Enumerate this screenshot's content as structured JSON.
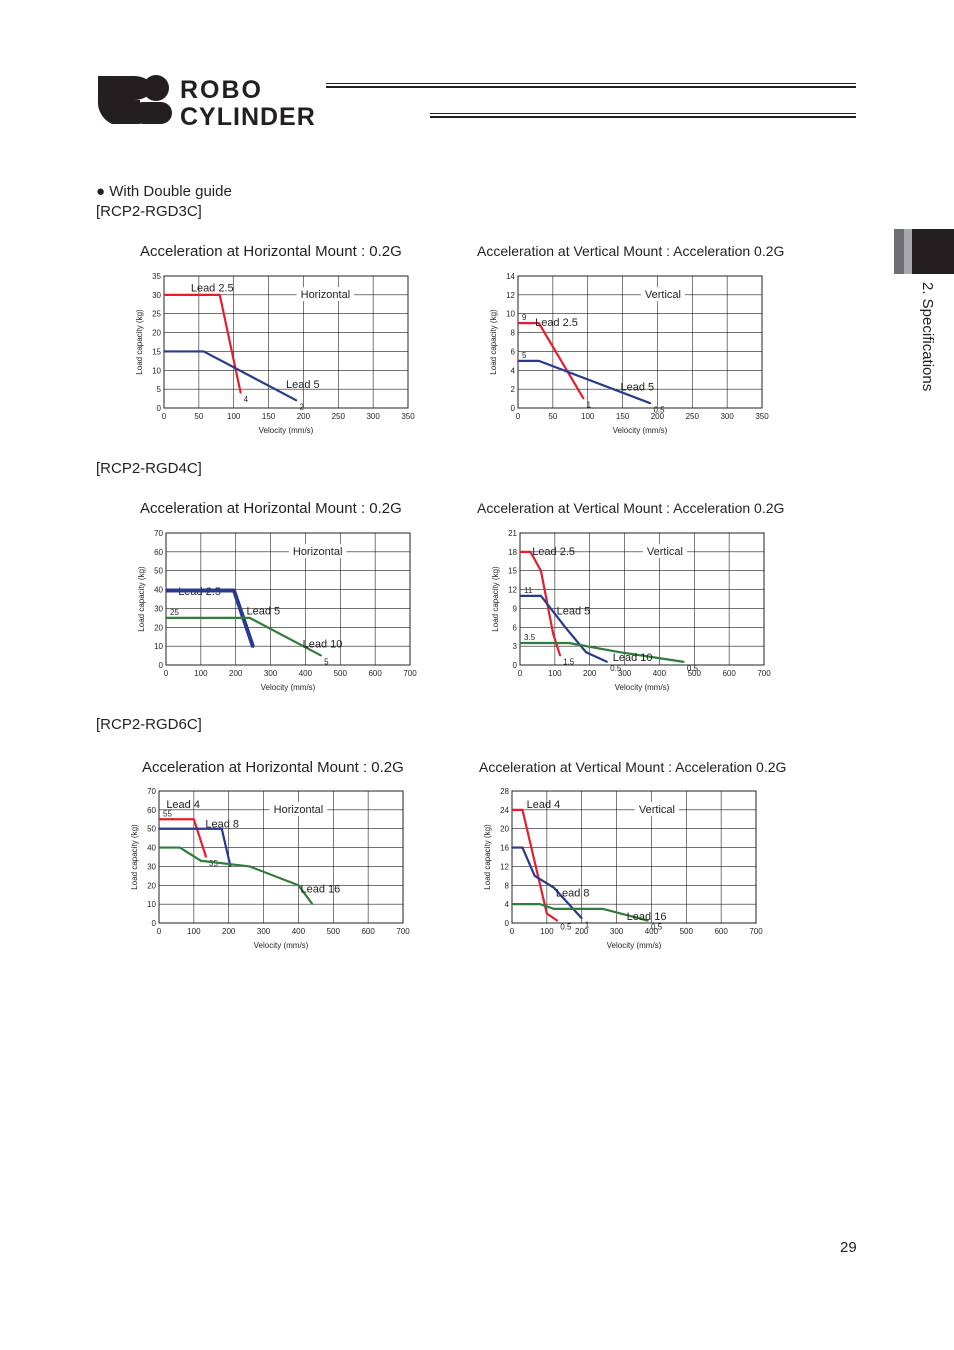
{
  "header": {
    "logo_text_line1": "ROBO",
    "logo_text_line2": "CYLINDER"
  },
  "side_tab": {
    "label": "2. Specifications",
    "colors": [
      "#6d6e71",
      "#a7a9ac",
      "#231f20"
    ]
  },
  "section": {
    "bullet_title": "● With Double guide",
    "rgd3c": "[RCP2-RGD3C]",
    "rgd4c": "[RCP2-RGD4C]",
    "rgd6c": "[RCP2-RGD6C]"
  },
  "page_number": "29",
  "colors": {
    "red": "#e31e2d",
    "blue": "#283a8d",
    "green": "#2e7d3a",
    "grid": "#231f20"
  },
  "chart_data": [
    {
      "type": "line",
      "title": "Acceleration at Horizontal Mount : 0.2G",
      "box_label": "Horizontal",
      "xlabel": "Velocity (mm/s)",
      "ylabel": "Load capacity (kg)",
      "xlim": [
        0,
        350
      ],
      "ylim": [
        0,
        35
      ],
      "xticks": [
        "0",
        "50",
        "100",
        "150",
        "200",
        "250",
        "300",
        "350"
      ],
      "yticks": [
        "0",
        "5",
        "10",
        "15",
        "20",
        "25",
        "30",
        "35"
      ],
      "grid": true,
      "series": [
        {
          "name": "Lead 2.5",
          "color": "red",
          "points": [
            [
              0,
              30
            ],
            [
              80,
              30
            ],
            [
              110,
              4
            ]
          ],
          "end_label": "4"
        },
        {
          "name": "Lead 5",
          "color": "blue",
          "points": [
            [
              0,
              15
            ],
            [
              57,
              15
            ],
            [
              190,
              2
            ]
          ],
          "end_label": "2"
        }
      ]
    },
    {
      "type": "line",
      "title": "Acceleration at Vertical Mount : Acceleration 0.2G",
      "box_label": "Vertical",
      "xlabel": "Velocity (mm/s)",
      "ylabel": "Load capacity (kg)",
      "xlim": [
        0,
        350
      ],
      "ylim": [
        0,
        14
      ],
      "xticks": [
        "0",
        "50",
        "100",
        "150",
        "200",
        "250",
        "300",
        "350"
      ],
      "yticks": [
        "0",
        "2",
        "4",
        "6",
        "8",
        "10",
        "12",
        "14"
      ],
      "grid": true,
      "series": [
        {
          "name": "Lead 2.5",
          "color": "red",
          "points": [
            [
              0,
              9
            ],
            [
              30,
              9
            ],
            [
              94,
              1
            ]
          ],
          "start_label": "9",
          "end_label": "1"
        },
        {
          "name": "Lead 5",
          "color": "blue",
          "points": [
            [
              0,
              5
            ],
            [
              30,
              5
            ],
            [
              190,
              0.5
            ]
          ],
          "start_label": "5",
          "end_label": "0.5"
        }
      ]
    },
    {
      "type": "line",
      "title": "Acceleration at Horizontal Mount : 0.2G",
      "box_label": "Horizontal",
      "xlabel": "Velocity (mm/s)",
      "ylabel": "Load capacity (kg)",
      "xlim": [
        0,
        700
      ],
      "ylim": [
        0,
        70
      ],
      "xticks": [
        "0",
        "100",
        "200",
        "300",
        "400",
        "500",
        "600",
        "700"
      ],
      "yticks": [
        "0",
        "10",
        "20",
        "30",
        "40",
        "50",
        "60",
        "70"
      ],
      "grid": true,
      "series": [
        {
          "name": "Lead 2.5",
          "color": "red",
          "points": [
            [
              0,
              40
            ],
            [
              192,
              40
            ],
            [
              248,
              10
            ]
          ]
        },
        {
          "name": "Lead 5",
          "color": "blue",
          "points": [
            [
              0,
              39.5
            ],
            [
              195,
              39.5
            ],
            [
              250,
              9.5
            ]
          ],
          "thick": true
        },
        {
          "name": "Lead 10",
          "color": "green",
          "points": [
            [
              0,
              25
            ],
            [
              240,
              25
            ],
            [
              445,
              5
            ]
          ],
          "start_label": "25",
          "end_label": "5"
        }
      ]
    },
    {
      "type": "line",
      "title": "Acceleration at Vertical Mount : Acceleration 0.2G",
      "box_label": "Vertical",
      "xlabel": "Velocity (mm/s)",
      "ylabel": "Load capacity (kg)",
      "xlim": [
        0,
        700
      ],
      "ylim": [
        0,
        21
      ],
      "xticks": [
        "0",
        "100",
        "200",
        "300",
        "400",
        "500",
        "600",
        "700"
      ],
      "yticks": [
        "0",
        "3",
        "6",
        "9",
        "12",
        "15",
        "18",
        "21"
      ],
      "grid": true,
      "series": [
        {
          "name": "Lead 2.5",
          "color": "red",
          "points": [
            [
              0,
              18
            ],
            [
              30,
              18
            ],
            [
              60,
              15
            ],
            [
              95,
              5
            ],
            [
              115,
              1.5
            ]
          ],
          "end_label": "1.5"
        },
        {
          "name": "Lead 5",
          "color": "blue",
          "points": [
            [
              0,
              11
            ],
            [
              60,
              11
            ],
            [
              130,
              6
            ],
            [
              190,
              2
            ],
            [
              250,
              0.5
            ]
          ],
          "start_label": "11",
          "end_label": "0.5"
        },
        {
          "name": "Lead 10",
          "color": "green",
          "points": [
            [
              0,
              3.5
            ],
            [
              140,
              3.5
            ],
            [
              290,
              2
            ],
            [
              470,
              0.5
            ]
          ],
          "start_label": "3.5",
          "end_label": "0.5"
        }
      ]
    },
    {
      "type": "line",
      "title": "Acceleration at Horizontal Mount : 0.2G",
      "box_label": "Horizontal",
      "xlabel": "Velocity (mm/s)",
      "ylabel": "Load capacity (kg)",
      "xlim": [
        0,
        700
      ],
      "ylim": [
        0,
        70
      ],
      "xticks": [
        "0",
        "100",
        "200",
        "300",
        "400",
        "500",
        "600",
        "700"
      ],
      "yticks": [
        "0",
        "10",
        "20",
        "30",
        "40",
        "50",
        "60",
        "70"
      ],
      "grid": true,
      "series": [
        {
          "name": "Lead 4",
          "color": "red",
          "points": [
            [
              0,
              55
            ],
            [
              100,
              55
            ],
            [
              135,
              35
            ]
          ],
          "start_label": "55",
          "end_label": "35"
        },
        {
          "name": "Lead 8",
          "color": "blue",
          "points": [
            [
              0,
              50
            ],
            [
              180,
              50
            ],
            [
              205,
              30
            ]
          ]
        },
        {
          "name": "Lead 16",
          "color": "green",
          "points": [
            [
              0,
              40
            ],
            [
              60,
              40
            ],
            [
              120,
              33
            ],
            [
              260,
              30
            ],
            [
              400,
              20
            ],
            [
              440,
              10
            ]
          ]
        }
      ]
    },
    {
      "type": "line",
      "title": "Acceleration at Vertical Mount : Acceleration 0.2G",
      "box_label": "Vertical",
      "xlabel": "Velocity (mm/s)",
      "ylabel": "Load capacity (kg)",
      "xlim": [
        0,
        700
      ],
      "ylim": [
        0,
        28
      ],
      "xticks": [
        "0",
        "100",
        "200",
        "300",
        "400",
        "500",
        "600",
        "700"
      ],
      "yticks": [
        "0",
        "4",
        "8",
        "12",
        "16",
        "20",
        "24",
        "28"
      ],
      "grid": true,
      "series": [
        {
          "name": "Lead 4",
          "color": "red",
          "points": [
            [
              0,
              24
            ],
            [
              30,
              24
            ],
            [
              100,
              2
            ],
            [
              130,
              0.5
            ]
          ],
          "end_label": "0.5"
        },
        {
          "name": "Lead 8",
          "color": "blue",
          "points": [
            [
              0,
              16
            ],
            [
              30,
              16
            ],
            [
              65,
              10
            ],
            [
              120,
              7.5
            ],
            [
              200,
              1
            ]
          ],
          "end_label": "1"
        },
        {
          "name": "Lead 16",
          "color": "green",
          "points": [
            [
              0,
              4
            ],
            [
              80,
              4
            ],
            [
              120,
              3
            ],
            [
              260,
              3
            ],
            [
              390,
              0.5
            ]
          ],
          "end_label": "0.5"
        }
      ]
    }
  ]
}
